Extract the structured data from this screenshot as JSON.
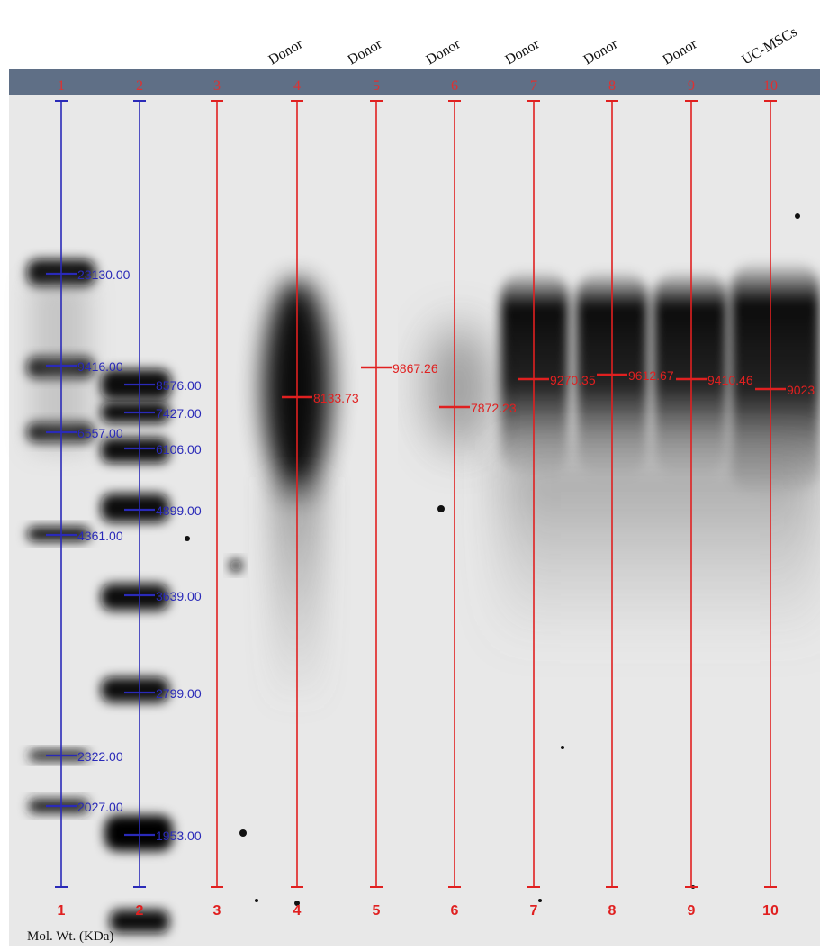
{
  "header": {
    "sample_labels": [
      "",
      "",
      "",
      "Donor",
      "Donor",
      "Donor",
      "Donor",
      "Donor",
      "Donor",
      "UC-MSCs"
    ],
    "lane_numbers_top": [
      "1",
      "2",
      "3",
      "4",
      "5",
      "6",
      "7",
      "8",
      "9",
      "10"
    ]
  },
  "footer": {
    "lane_numbers_bottom": [
      "1",
      "2",
      "3",
      "4",
      "5",
      "6",
      "7",
      "8",
      "9",
      "10"
    ],
    "axis_label": "Mol. Wt. (KDa)"
  },
  "ladders": {
    "lane1": [
      {
        "label": "23130.00",
        "color_level": 0.9
      },
      {
        "label": "9416.00",
        "color_level": 0.85
      },
      {
        "label": "6557.00",
        "color_level": 0.85
      },
      {
        "label": "4361.00",
        "color_level": 0.8
      },
      {
        "label": "2322.00",
        "color_level": 0.6
      },
      {
        "label": "2027.00",
        "color_level": 0.6
      }
    ],
    "lane2": [
      {
        "label": "8576.00",
        "color_level": 0.9
      },
      {
        "label": "7427.00",
        "color_level": 0.9
      },
      {
        "label": "6106.00",
        "color_level": 0.9
      },
      {
        "label": "4899.00",
        "color_level": 0.9
      },
      {
        "label": "3639.00",
        "color_level": 0.9
      },
      {
        "label": "2799.00",
        "color_level": 0.9
      },
      {
        "label": "1953.00",
        "color_level": 0.95
      }
    ]
  },
  "samples": [
    {
      "lane": "4",
      "value_label": "8133.73"
    },
    {
      "lane": "5",
      "value_label": "9867.26"
    },
    {
      "lane": "6",
      "value_label": "7872.23"
    },
    {
      "lane": "7",
      "value_label": "9270.35"
    },
    {
      "lane": "8",
      "value_label": "9612.67"
    },
    {
      "lane": "9",
      "value_label": "9410.46"
    },
    {
      "lane": "10",
      "value_label": "9023"
    }
  ],
  "colors": {
    "header_bar": "#5f6f86",
    "ladder_line": "#2a2ab8",
    "sample_line": "#e02020",
    "gel_background": "#e8e8e8"
  }
}
